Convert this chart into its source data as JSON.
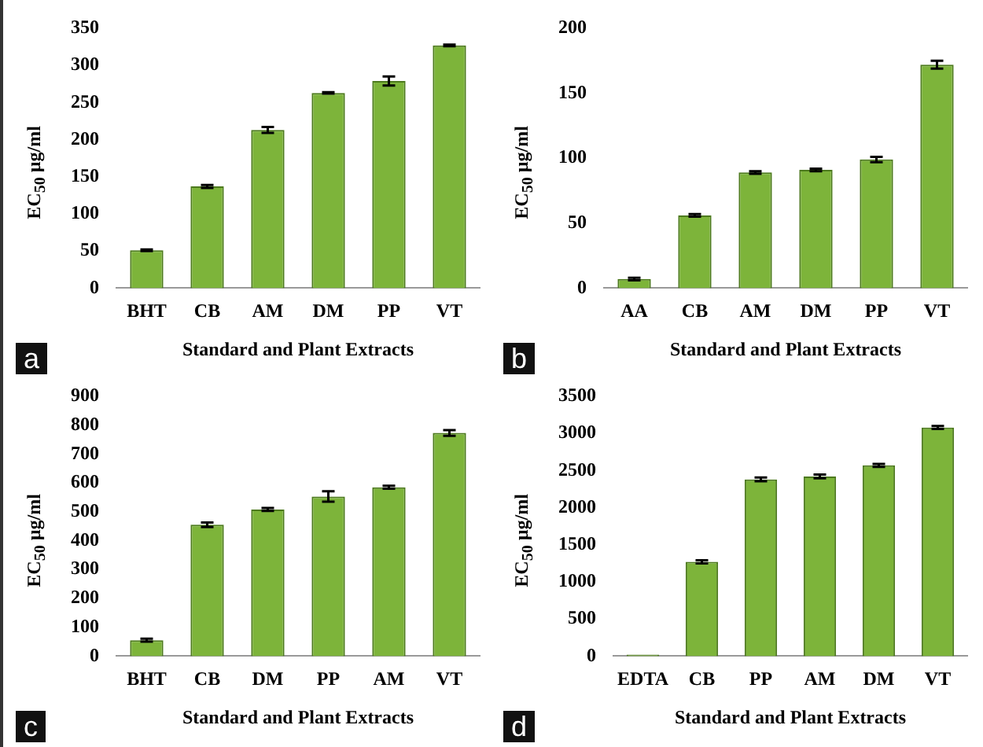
{
  "chart_data": [
    {
      "type": "bar",
      "categories": [
        "BHT",
        "CB",
        "AM",
        "DM",
        "PP",
        "VT"
      ],
      "xlabel": "Standard and Plant Extracts",
      "ylabel": "EC$_{50}$ µg/ml",
      "color": "#7db43a",
      "values": [
        51,
        137,
        213,
        263,
        279,
        327
      ],
      "errors": [
        1,
        2,
        4,
        1,
        6,
        1
      ],
      "ylim": [
        0,
        350
      ],
      "yticks": [
        0,
        50,
        100,
        150,
        200,
        250,
        300,
        350
      ],
      "grid": false,
      "legend": false,
      "annotations": [
        "a"
      ]
    },
    {
      "type": "bar",
      "categories": [
        "AA",
        "CB",
        "AM",
        "DM",
        "PP",
        "VT"
      ],
      "xlabel": "Standard and Plant Extracts",
      "ylabel": "EC$_{50}$ µg/ml",
      "color": "#7db43a",
      "values": [
        7,
        56,
        89,
        91,
        99,
        172
      ],
      "errors": [
        1,
        1,
        1,
        1,
        2,
        3
      ],
      "ylim": [
        0,
        200
      ],
      "yticks": [
        0,
        50,
        100,
        150,
        200
      ],
      "grid": false,
      "legend": false,
      "annotations": [
        "b"
      ]
    },
    {
      "type": "bar",
      "categories": [
        "BHT",
        "CB",
        "DM",
        "PP",
        "AM",
        "VT"
      ],
      "xlabel": "Standard and Plant Extracts",
      "ylabel": "EC$_{50}$ µg/ml",
      "color": "#7db43a",
      "values": [
        55,
        455,
        508,
        553,
        585,
        773
      ],
      "errors": [
        5,
        8,
        5,
        18,
        5,
        10
      ],
      "ylim": [
        0,
        900
      ],
      "yticks": [
        0,
        100,
        200,
        300,
        400,
        500,
        600,
        700,
        800,
        900
      ],
      "grid": false,
      "legend": false,
      "annotations": [
        "c"
      ]
    },
    {
      "type": "bar",
      "categories": [
        "EDTA",
        "CB",
        "PP",
        "AM",
        "DM",
        "VT"
      ],
      "xlabel": "Standard and Plant Extracts",
      "ylabel": "EC$_{50}$ µg/ml",
      "color": "#7db43a",
      "values": [
        20,
        1270,
        2380,
        2420,
        2570,
        3080
      ],
      "errors": [
        null,
        20,
        25,
        25,
        20,
        20
      ],
      "ylim": [
        0,
        3500
      ],
      "yticks": [
        0,
        500,
        1000,
        1500,
        2000,
        2500,
        3000,
        3500
      ],
      "grid": false,
      "legend": false,
      "annotations": [
        "d"
      ]
    }
  ]
}
